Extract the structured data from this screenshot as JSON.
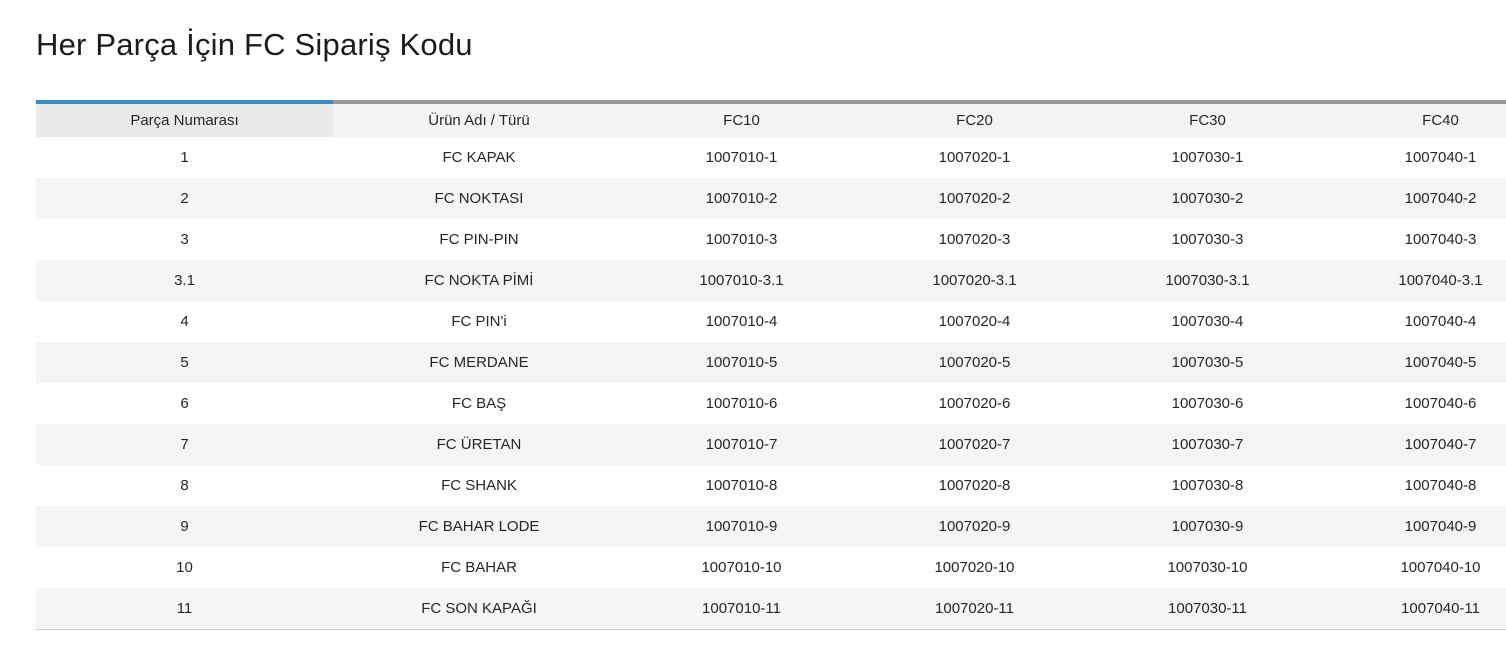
{
  "page": {
    "title": "Her Parça İçin FC Sipariş Kodu"
  },
  "table": {
    "columns": [
      {
        "label": "Parça Numarası",
        "active": true
      },
      {
        "label": "Ürün Adı / Türü",
        "active": false
      },
      {
        "label": "FC10",
        "active": false
      },
      {
        "label": "FC20",
        "active": false
      },
      {
        "label": "FC30",
        "active": false
      },
      {
        "label": "FC40",
        "active": false
      }
    ],
    "rows": [
      [
        "1",
        "FC KAPAK",
        "1007010-1",
        "1007020-1",
        "1007030-1",
        "1007040-1"
      ],
      [
        "2",
        "FC NOKTASI",
        "1007010-2",
        "1007020-2",
        "1007030-2",
        "1007040-2"
      ],
      [
        "3",
        "FC PIN-PIN",
        "1007010-3",
        "1007020-3",
        "1007030-3",
        "1007040-3"
      ],
      [
        "3.1",
        "FC NOKTA PİMİ",
        "1007010-3.1",
        "1007020-3.1",
        "1007030-3.1",
        "1007040-3.1"
      ],
      [
        "4",
        "FC PIN'i",
        "1007010-4",
        "1007020-4",
        "1007030-4",
        "1007040-4"
      ],
      [
        "5",
        "FC MERDANE",
        "1007010-5",
        "1007020-5",
        "1007030-5",
        "1007040-5"
      ],
      [
        "6",
        "FC BAŞ",
        "1007010-6",
        "1007020-6",
        "1007030-6",
        "1007040-6"
      ],
      [
        "7",
        "FC ÜRETAN",
        "1007010-7",
        "1007020-7",
        "1007030-7",
        "1007040-7"
      ],
      [
        "8",
        "FC SHANK",
        "1007010-8",
        "1007020-8",
        "1007030-8",
        "1007040-8"
      ],
      [
        "9",
        "FC BAHAR LODE",
        "1007010-9",
        "1007020-9",
        "1007030-9",
        "1007040-9"
      ],
      [
        "10",
        "FC BAHAR",
        "1007010-10",
        "1007020-10",
        "1007030-10",
        "1007040-10"
      ],
      [
        "11",
        "FC SON KAPAĞI",
        "1007010-11",
        "1007020-11",
        "1007030-11",
        "1007040-11"
      ]
    ]
  },
  "colors": {
    "accent_blue": "#3a8cc0",
    "header_top_border_gray": "#999999",
    "header_background": "#f4f4f4",
    "active_header_background": "#eaeaea",
    "alt_row_background": "#f5f5f5",
    "table_bottom_border": "#cccccc",
    "text": "#262626"
  }
}
